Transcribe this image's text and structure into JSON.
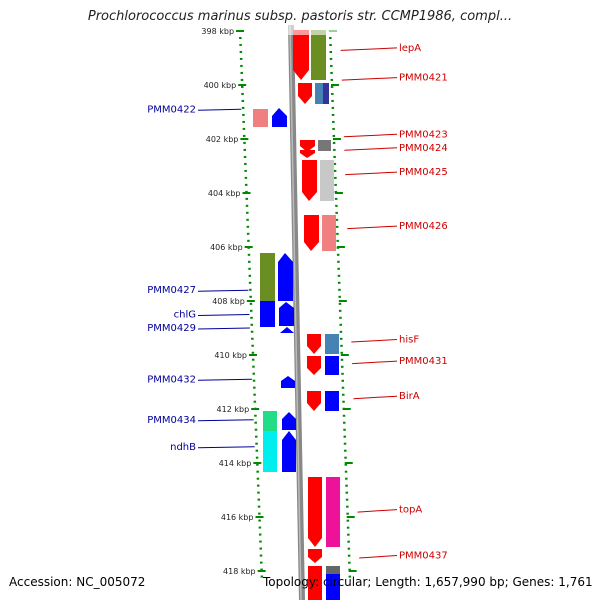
{
  "header": {
    "title": "Prochlorococcus marinus subsp. pastoris str. CCMP1986, compl..."
  },
  "footer": {
    "accession": "Accession: NC_005072",
    "topology": "Topology: circular; Length: 1,657,990 bp; Genes: 1,761"
  },
  "map": {
    "range_kbp": [
      397.5,
      418.5
    ],
    "ticks": [
      {
        "kbp": 398,
        "label": "398 kbp"
      },
      {
        "kbp": 400,
        "label": "400 kbp"
      },
      {
        "kbp": 402,
        "label": "402 kbp"
      },
      {
        "kbp": 404,
        "label": "404 kbp"
      },
      {
        "kbp": 406,
        "label": "406 kbp"
      },
      {
        "kbp": 408,
        "label": "408 kbp"
      },
      {
        "kbp": 410,
        "label": "410 kbp"
      },
      {
        "kbp": 412,
        "label": "412 kbp"
      },
      {
        "kbp": 414,
        "label": "414 kbp"
      },
      {
        "kbp": 416,
        "label": "416 kbp"
      },
      {
        "kbp": 418,
        "label": "418 kbp"
      }
    ],
    "colors": {
      "forward_label": "#cc0000",
      "reverse_label": "#000099",
      "forward_cds": "#ff0000",
      "reverse_cds": "#0000ff"
    },
    "forward_labels": [
      {
        "kbp": 398.7,
        "text": "lepA"
      },
      {
        "kbp": 399.8,
        "text": "PMM0421"
      },
      {
        "kbp": 401.9,
        "text": "PMM0423"
      },
      {
        "kbp": 402.4,
        "text": "PMM0424"
      },
      {
        "kbp": 403.3,
        "text": "PMM0425"
      },
      {
        "kbp": 405.3,
        "text": "PMM0426"
      },
      {
        "kbp": 409.5,
        "text": "hisF"
      },
      {
        "kbp": 410.3,
        "text": "PMM0431"
      },
      {
        "kbp": 411.6,
        "text": "BirA"
      },
      {
        "kbp": 415.8,
        "text": "topA"
      },
      {
        "kbp": 417.5,
        "text": "PMM0437"
      }
    ],
    "reverse_labels": [
      {
        "kbp": 400.9,
        "text": "PMM0422"
      },
      {
        "kbp": 407.6,
        "text": "PMM0427"
      },
      {
        "kbp": 408.5,
        "text": "chlG"
      },
      {
        "kbp": 409.0,
        "text": "PMM0429"
      },
      {
        "kbp": 410.9,
        "text": "PMM0432"
      },
      {
        "kbp": 412.4,
        "text": "PMM0434"
      },
      {
        "kbp": 413.4,
        "text": "ndhB"
      }
    ]
  }
}
